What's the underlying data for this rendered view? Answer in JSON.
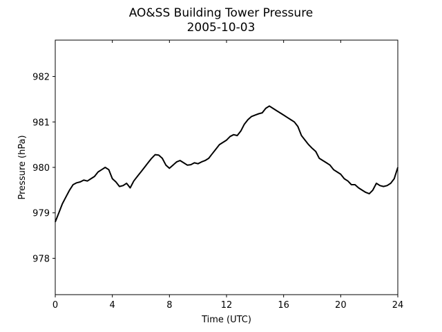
{
  "chart_data": {
    "type": "line",
    "title": "AO&SS Building Tower Pressure",
    "subtitle": "2005-10-03",
    "xlabel": "Time (UTC)",
    "ylabel": "Pressure (hPa)",
    "xlim": [
      0,
      24
    ],
    "ylim": [
      977.2,
      982.8
    ],
    "xticks": [
      0,
      4,
      8,
      12,
      16,
      20,
      24
    ],
    "yticks": [
      978,
      979,
      980,
      981,
      982
    ],
    "grid": false,
    "line_color": "#000000",
    "series": [
      {
        "x": [
          0,
          0.25,
          0.5,
          0.75,
          1,
          1.25,
          1.5,
          1.75,
          2,
          2.25,
          2.5,
          2.75,
          3,
          3.25,
          3.5,
          3.75,
          4,
          4.25,
          4.5,
          4.75,
          5,
          5.25,
          5.5,
          5.75,
          6,
          6.25,
          6.5,
          6.75,
          7,
          7.25,
          7.5,
          7.75,
          8,
          8.25,
          8.5,
          8.75,
          9,
          9.25,
          9.5,
          9.75,
          10,
          10.25,
          10.5,
          10.75,
          11,
          11.25,
          11.5,
          11.75,
          12,
          12.25,
          12.5,
          12.75,
          13,
          13.25,
          13.5,
          13.75,
          14,
          14.25,
          14.5,
          14.75,
          15,
          15.25,
          15.5,
          15.75,
          16,
          16.25,
          16.5,
          16.75,
          17,
          17.25,
          17.5,
          17.75,
          18,
          18.25,
          18.5,
          18.75,
          19,
          19.25,
          19.5,
          19.75,
          20,
          20.25,
          20.5,
          20.75,
          21,
          21.25,
          21.5,
          21.75,
          22,
          22.25,
          22.5,
          22.75,
          23,
          23.25,
          23.5,
          23.75,
          24
        ],
        "values": [
          978.8,
          979.0,
          979.2,
          979.35,
          979.5,
          979.62,
          979.66,
          979.68,
          979.72,
          979.7,
          979.75,
          979.8,
          979.9,
          979.95,
          980.0,
          979.95,
          979.75,
          979.68,
          979.58,
          979.6,
          979.65,
          979.55,
          979.7,
          979.8,
          979.9,
          980.0,
          980.1,
          980.2,
          980.28,
          980.27,
          980.2,
          980.05,
          979.98,
          980.05,
          980.12,
          980.15,
          980.1,
          980.05,
          980.06,
          980.1,
          980.08,
          980.12,
          980.15,
          980.2,
          980.3,
          980.4,
          980.5,
          980.55,
          980.6,
          980.68,
          980.72,
          980.7,
          980.8,
          980.95,
          981.05,
          981.12,
          981.15,
          981.18,
          981.2,
          981.3,
          981.35,
          981.3,
          981.25,
          981.2,
          981.15,
          981.1,
          981.05,
          981.0,
          980.9,
          980.7,
          980.6,
          980.5,
          980.42,
          980.35,
          980.2,
          980.15,
          980.1,
          980.05,
          979.95,
          979.9,
          979.85,
          979.75,
          979.7,
          979.62,
          979.62,
          979.55,
          979.5,
          979.45,
          979.42,
          979.5,
          979.65,
          979.6,
          979.58,
          979.6,
          979.65,
          979.75,
          980.0
        ]
      }
    ]
  }
}
